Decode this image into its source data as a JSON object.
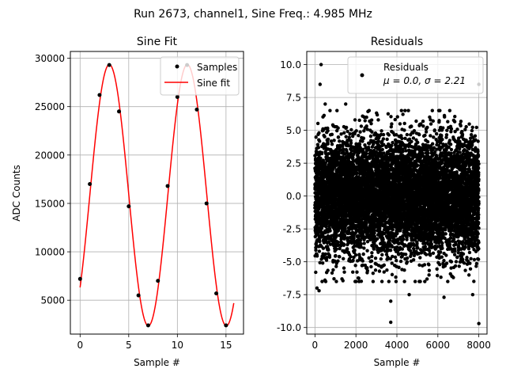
{
  "suptitle": "Run 2673, channel1, Sine Freq.: 4.985 MHz",
  "chart_data": [
    {
      "type": "line",
      "title": "Sine Fit",
      "xlabel": "Sample #",
      "ylabel": "ADC Counts",
      "xlim": [
        -1.0,
        16.8
      ],
      "ylim": [
        1500,
        30700
      ],
      "xticks": [
        0,
        5,
        10,
        15
      ],
      "yticks": [
        5000,
        10000,
        15000,
        20000,
        25000,
        30000
      ],
      "grid": true,
      "legend": "top-right",
      "series": [
        {
          "name": "Samples",
          "style": "points",
          "color": "#000000",
          "x": [
            0,
            1,
            2,
            3,
            4,
            5,
            6,
            7,
            8,
            9,
            10,
            11,
            12,
            13,
            14,
            15
          ],
          "y": [
            7200,
            17000,
            26200,
            29300,
            24500,
            14700,
            5500,
            2400,
            7000,
            16800,
            26000,
            29300,
            24700,
            15000,
            5700,
            2400
          ]
        },
        {
          "name": "Sine fit",
          "style": "line",
          "color": "#ff0000",
          "model": {
            "offset": 15850,
            "amplitude": 13500,
            "period": 8.02,
            "phase_shift": 1.0,
            "x_range": [
              0,
              15.8
            ]
          }
        }
      ]
    },
    {
      "type": "scatter",
      "title": "Residuals",
      "xlabel": "Sample #",
      "ylabel": "",
      "xlim": [
        -400,
        8400
      ],
      "ylim": [
        -10.5,
        11.0
      ],
      "xticks": [
        0,
        2000,
        4000,
        6000,
        8000
      ],
      "yticks": [
        -10.0,
        -7.5,
        -5.0,
        -2.5,
        0.0,
        2.5,
        5.0,
        7.5,
        10.0
      ],
      "grid": true,
      "legend": "top-right",
      "series": [
        {
          "name": "Residuals",
          "legend_stats": "μ = 0.0, σ = 2.21",
          "color": "#000000",
          "n_points": 8000,
          "mean": 0.0,
          "std": 2.21,
          "outliers": [
            [
              300,
              10.0
            ],
            [
              250,
              8.5
            ],
            [
              8000,
              8.5
            ],
            [
              3700,
              -9.6
            ],
            [
              8000,
              -9.7
            ],
            [
              3700,
              -8.0
            ],
            [
              4600,
              -7.5
            ],
            [
              6300,
              -7.7
            ],
            [
              7700,
              -7.5
            ],
            [
              100,
              -7.0
            ],
            [
              200,
              -7.2
            ],
            [
              500,
              7.0
            ],
            [
              1500,
              7.0
            ]
          ]
        }
      ]
    }
  ]
}
